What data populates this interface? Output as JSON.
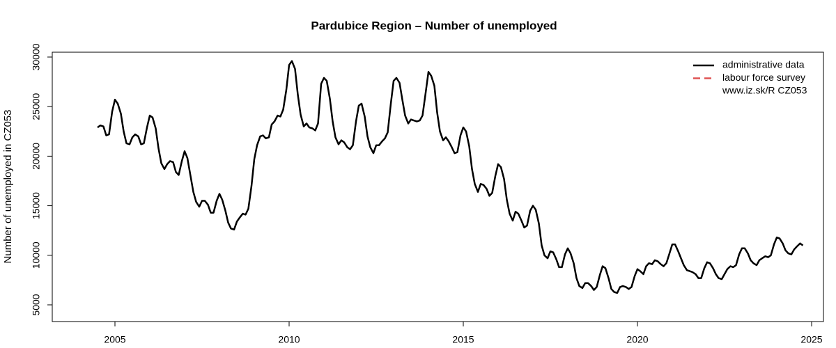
{
  "chart_data": {
    "type": "line",
    "title": "Pardubice Region – Number of unemployed",
    "y_label": "Number of unemployed in CZ053",
    "note": "www.iz.sk/R CZ053",
    "legend": "topright",
    "grid": false,
    "xlim": [
      2003.2,
      2025.34
    ],
    "ylim": [
      3315,
      30490
    ],
    "xticks": [
      2005,
      2010,
      2015,
      2020,
      2025
    ],
    "yticks": [
      5000,
      10000,
      15000,
      20000,
      25000,
      30000
    ],
    "x": [
      2004.5,
      2004.58,
      2004.67,
      2004.75,
      2004.83,
      2004.92,
      2005,
      2005.08,
      2005.17,
      2005.25,
      2005.33,
      2005.42,
      2005.5,
      2005.58,
      2005.67,
      2005.75,
      2005.83,
      2005.92,
      2006,
      2006.08,
      2006.17,
      2006.25,
      2006.33,
      2006.42,
      2006.5,
      2006.58,
      2006.67,
      2006.75,
      2006.83,
      2006.92,
      2007,
      2007.08,
      2007.17,
      2007.25,
      2007.33,
      2007.42,
      2007.5,
      2007.58,
      2007.67,
      2007.75,
      2007.83,
      2007.92,
      2008,
      2008.08,
      2008.17,
      2008.25,
      2008.33,
      2008.42,
      2008.5,
      2008.58,
      2008.67,
      2008.75,
      2008.83,
      2008.92,
      2009,
      2009.08,
      2009.17,
      2009.25,
      2009.33,
      2009.42,
      2009.5,
      2009.58,
      2009.67,
      2009.75,
      2009.83,
      2009.92,
      2010,
      2010.08,
      2010.17,
      2010.25,
      2010.33,
      2010.42,
      2010.5,
      2010.58,
      2010.67,
      2010.75,
      2010.83,
      2010.92,
      2011,
      2011.08,
      2011.17,
      2011.25,
      2011.33,
      2011.42,
      2011.5,
      2011.58,
      2011.67,
      2011.75,
      2011.83,
      2011.92,
      2012,
      2012.08,
      2012.17,
      2012.25,
      2012.33,
      2012.42,
      2012.5,
      2012.58,
      2012.67,
      2012.75,
      2012.83,
      2012.92,
      2013,
      2013.08,
      2013.17,
      2013.25,
      2013.33,
      2013.42,
      2013.5,
      2013.58,
      2013.67,
      2013.75,
      2013.83,
      2013.92,
      2014,
      2014.08,
      2014.17,
      2014.25,
      2014.33,
      2014.42,
      2014.5,
      2014.58,
      2014.67,
      2014.75,
      2014.83,
      2014.92,
      2015,
      2015.08,
      2015.17,
      2015.25,
      2015.33,
      2015.42,
      2015.5,
      2015.58,
      2015.67,
      2015.75,
      2015.83,
      2015.92,
      2016,
      2016.08,
      2016.17,
      2016.25,
      2016.33,
      2016.42,
      2016.5,
      2016.58,
      2016.67,
      2016.75,
      2016.83,
      2016.92,
      2017,
      2017.08,
      2017.17,
      2017.25,
      2017.33,
      2017.42,
      2017.5,
      2017.58,
      2017.67,
      2017.75,
      2017.83,
      2017.92,
      2018,
      2018.08,
      2018.17,
      2018.25,
      2018.33,
      2018.42,
      2018.5,
      2018.58,
      2018.67,
      2018.75,
      2018.83,
      2018.92,
      2019,
      2019.08,
      2019.17,
      2019.25,
      2019.33,
      2019.42,
      2019.5,
      2019.58,
      2019.67,
      2019.75,
      2019.83,
      2019.92,
      2020,
      2020.08,
      2020.17,
      2020.25,
      2020.33,
      2020.42,
      2020.5,
      2020.58,
      2020.67,
      2020.75,
      2020.83,
      2020.92,
      2021,
      2021.08,
      2021.17,
      2021.25,
      2021.33,
      2021.42,
      2021.5,
      2021.58,
      2021.67,
      2021.75,
      2021.83,
      2021.92,
      2022,
      2022.08,
      2022.17,
      2022.25,
      2022.33,
      2022.42,
      2022.5,
      2022.58,
      2022.67,
      2022.75,
      2022.83,
      2022.92,
      2023,
      2023.08,
      2023.17,
      2023.25,
      2023.33,
      2023.42,
      2023.5,
      2023.58,
      2023.67,
      2023.75,
      2023.83,
      2023.92,
      2024,
      2024.08,
      2024.17,
      2024.25,
      2024.33,
      2024.42,
      2024.5,
      2024.58,
      2024.67,
      2024.75
    ],
    "series": [
      {
        "name": "administrative data",
        "color": "#000000",
        "dash": "solid",
        "values": [
          22900,
          23100,
          23000,
          22100,
          22200,
          24500,
          25700,
          25300,
          24300,
          22500,
          21300,
          21200,
          21900,
          22200,
          22000,
          21200,
          21300,
          22900,
          24100,
          23900,
          22800,
          20800,
          19300,
          18700,
          19200,
          19500,
          19400,
          18400,
          18100,
          19500,
          20500,
          19800,
          18000,
          16400,
          15400,
          14900,
          15500,
          15500,
          15100,
          14300,
          14300,
          15500,
          16200,
          15600,
          14500,
          13300,
          12700,
          12600,
          13400,
          13800,
          14200,
          14100,
          14700,
          17000,
          19700,
          21100,
          22000,
          22100,
          21800,
          21900,
          23200,
          23500,
          24100,
          24000,
          24700,
          26700,
          29200,
          29600,
          28800,
          26200,
          24200,
          23000,
          23300,
          22900,
          22800,
          22600,
          23300,
          27300,
          27900,
          27600,
          25800,
          23500,
          21900,
          21200,
          21600,
          21400,
          20900,
          20700,
          21100,
          23500,
          25100,
          25300,
          24000,
          22000,
          20900,
          20300,
          21100,
          21100,
          21500,
          21800,
          22400,
          25300,
          27600,
          27900,
          27400,
          25700,
          24100,
          23300,
          23700,
          23600,
          23500,
          23600,
          24100,
          26400,
          28500,
          28100,
          27100,
          24400,
          22500,
          21600,
          21900,
          21500,
          20900,
          20300,
          20400,
          22100,
          22900,
          22500,
          21000,
          18700,
          17200,
          16400,
          17200,
          17100,
          16700,
          16000,
          16300,
          18000,
          19200,
          18900,
          17700,
          15600,
          14200,
          13500,
          14400,
          14200,
          13500,
          12800,
          13000,
          14500,
          15000,
          14600,
          13200,
          11000,
          10000,
          9700,
          10400,
          10300,
          9600,
          8800,
          8800,
          10100,
          10700,
          10200,
          9200,
          7700,
          6900,
          6700,
          7200,
          7200,
          6900,
          6500,
          6800,
          8000,
          8900,
          8700,
          7700,
          6600,
          6300,
          6200,
          6800,
          6900,
          6800,
          6600,
          6800,
          7900,
          8600,
          8400,
          8100,
          8900,
          9200,
          9100,
          9500,
          9400,
          9100,
          8900,
          9200,
          10200,
          11100,
          11100,
          10400,
          9700,
          9000,
          8500,
          8400,
          8300,
          8100,
          7700,
          7700,
          8700,
          9300,
          9200,
          8700,
          8100,
          7700,
          7600,
          8100,
          8600,
          8900,
          8800,
          9000,
          10100,
          10700,
          10700,
          10200,
          9500,
          9200,
          9000,
          9500,
          9700,
          9900,
          9800,
          10000,
          11100,
          11800,
          11700,
          11200,
          10500,
          10200,
          10100,
          10600,
          10900,
          11200,
          11000
        ]
      },
      {
        "name": "labour force survey",
        "color": "#df5353",
        "dash": "dashed",
        "x": [],
        "values": []
      }
    ]
  }
}
